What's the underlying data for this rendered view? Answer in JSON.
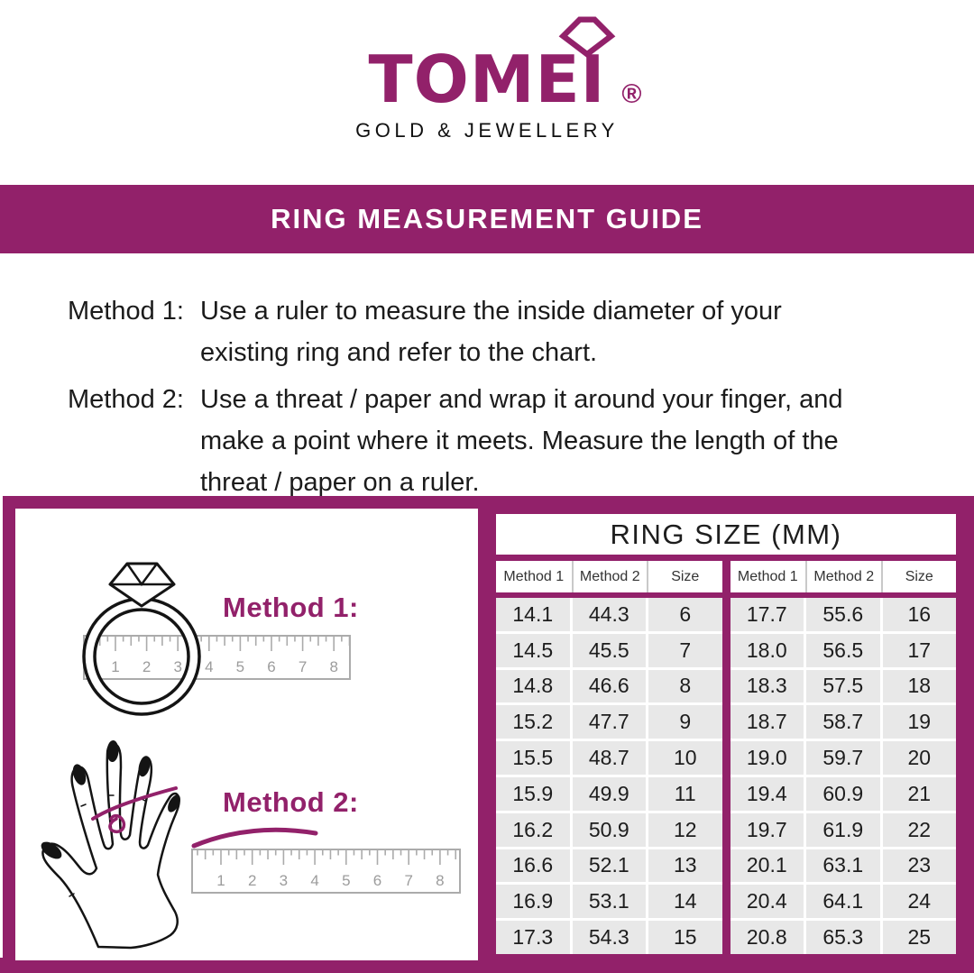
{
  "logo": {
    "brand": "TOMEI",
    "registered": "®",
    "subtitle": "GOLD & JEWELLERY"
  },
  "banner": {
    "title": "RING MEASUREMENT GUIDE"
  },
  "instructions": {
    "method1_label": "Method 1:",
    "method1_text": "Use a ruler to measure the inside diameter of your\nexisting ring and refer to the chart.",
    "method2_label": "Method 2:",
    "method2_text": "Use a threat / paper and wrap it around your finger, and\nmake a point where it meets. Measure the length of the\nthreat / paper on a ruler."
  },
  "diagram": {
    "method1_label": "Method 1:",
    "method2_label": "Method 2:",
    "ruler_marks": [
      "1",
      "2",
      "3",
      "4",
      "5",
      "6",
      "7",
      "8"
    ]
  },
  "size_chart": {
    "title": "RING SIZE (MM)",
    "columns": [
      "Method 1",
      "Method 2",
      "Size"
    ],
    "left_rows": [
      [
        "14.1",
        "44.3",
        "6"
      ],
      [
        "14.5",
        "45.5",
        "7"
      ],
      [
        "14.8",
        "46.6",
        "8"
      ],
      [
        "15.2",
        "47.7",
        "9"
      ],
      [
        "15.5",
        "48.7",
        "10"
      ],
      [
        "15.9",
        "49.9",
        "11"
      ],
      [
        "16.2",
        "50.9",
        "12"
      ],
      [
        "16.6",
        "52.1",
        "13"
      ],
      [
        "16.9",
        "53.1",
        "14"
      ],
      [
        "17.3",
        "54.3",
        "15"
      ]
    ],
    "right_rows": [
      [
        "17.7",
        "55.6",
        "16"
      ],
      [
        "18.0",
        "56.5",
        "17"
      ],
      [
        "18.3",
        "57.5",
        "18"
      ],
      [
        "18.7",
        "58.7",
        "19"
      ],
      [
        "19.0",
        "59.7",
        "20"
      ],
      [
        "19.4",
        "60.9",
        "21"
      ],
      [
        "19.7",
        "61.9",
        "22"
      ],
      [
        "20.1",
        "63.1",
        "23"
      ],
      [
        "20.4",
        "64.1",
        "24"
      ],
      [
        "20.8",
        "65.3",
        "25"
      ]
    ]
  },
  "colors": {
    "accent": "#92216A",
    "cell_bg": "#E8E8E8"
  }
}
